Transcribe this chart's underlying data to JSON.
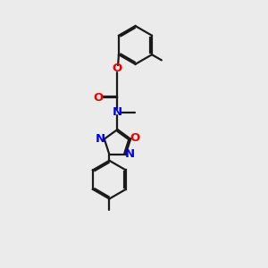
{
  "bg_color": "#ebebeb",
  "bond_color": "#1a1a1a",
  "N_color": "#0000ee",
  "O_color": "#ee0000",
  "line_width": 1.6,
  "dbo": 0.055,
  "font_size": 9.5,
  "figsize": [
    3.0,
    3.0
  ],
  "dpi": 100,
  "xlim": [
    0,
    10
  ],
  "ylim": [
    0,
    10
  ]
}
